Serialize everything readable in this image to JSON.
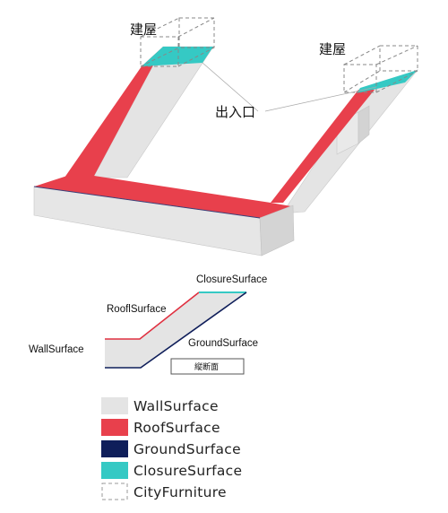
{
  "diagram": {
    "labels": {
      "building_left": "建屋",
      "building_right": "建屋",
      "entrance": "出入口"
    },
    "section": {
      "closure_label": "ClosureSurface",
      "roof_label": "RooflSurface",
      "wall_label": "WallSurface",
      "ground_label": "GroundSurface",
      "caption": "縦断面"
    },
    "legend": [
      {
        "label": "WallSurface",
        "color": "#e4e4e4",
        "style": "fill"
      },
      {
        "label": "RoofSurface",
        "color": "#e8404c",
        "style": "fill"
      },
      {
        "label": "GroundSurface",
        "color": "#0f1e5a",
        "style": "fill"
      },
      {
        "label": "ClosureSurface",
        "color": "#35c9c4",
        "style": "fill"
      },
      {
        "label": "CityFurniture",
        "color": "#9a9a9a",
        "style": "dashed"
      }
    ]
  }
}
